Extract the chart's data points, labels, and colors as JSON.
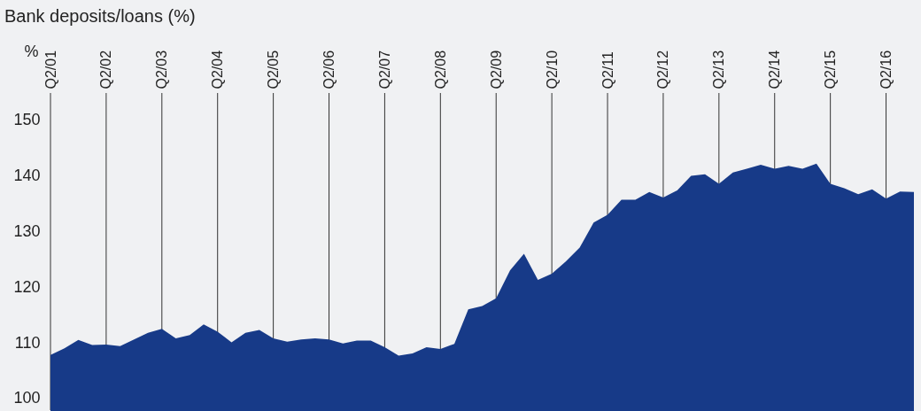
{
  "chart_data": {
    "type": "area",
    "title": "Bank deposits/loans (%)",
    "ylabel": "%",
    "categories": [
      "Q2/01",
      null,
      null,
      null,
      "Q2/02",
      null,
      null,
      null,
      "Q2/03",
      null,
      null,
      null,
      "Q2/04",
      null,
      null,
      null,
      "Q2/05",
      null,
      null,
      null,
      "Q2/06",
      null,
      null,
      null,
      "Q2/07",
      null,
      null,
      null,
      "Q2/08",
      null,
      null,
      null,
      "Q2/09",
      null,
      null,
      null,
      "Q2/10",
      null,
      null,
      null,
      "Q2/11",
      null,
      null,
      null,
      "Q2/12",
      null,
      null,
      null,
      "Q2/13",
      null,
      null,
      null,
      "Q2/14",
      null,
      null,
      null,
      "Q2/15",
      null,
      null,
      null,
      "Q2/16",
      null,
      null
    ],
    "series": [
      {
        "color": "#173a88",
        "values": [
          107.8,
          109.0,
          110.5,
          109.6,
          109.7,
          109.4,
          110.6,
          111.8,
          112.5,
          110.8,
          111.4,
          113.3,
          112.0,
          110.1,
          111.8,
          112.3,
          110.8,
          110.2,
          110.6,
          110.8,
          110.6,
          109.9,
          110.4,
          110.4,
          109.2,
          107.7,
          108.1,
          109.2,
          108.9,
          109.8,
          116.0,
          116.6,
          118.0,
          123.0,
          126.0,
          121.3,
          122.4,
          124.6,
          127.1,
          131.6,
          133.0,
          135.7,
          135.7,
          137.1,
          136.1,
          137.4,
          140.0,
          140.3,
          138.6,
          140.6,
          141.3,
          142.0,
          141.3,
          141.8,
          141.3,
          142.2,
          138.6,
          137.8,
          136.7,
          137.6,
          135.9,
          137.2,
          137.1
        ]
      }
    ],
    "ylim": [
      97.9,
      154.9
    ],
    "yticks": [
      100,
      110,
      120,
      130,
      140,
      150
    ],
    "grid": "x"
  }
}
